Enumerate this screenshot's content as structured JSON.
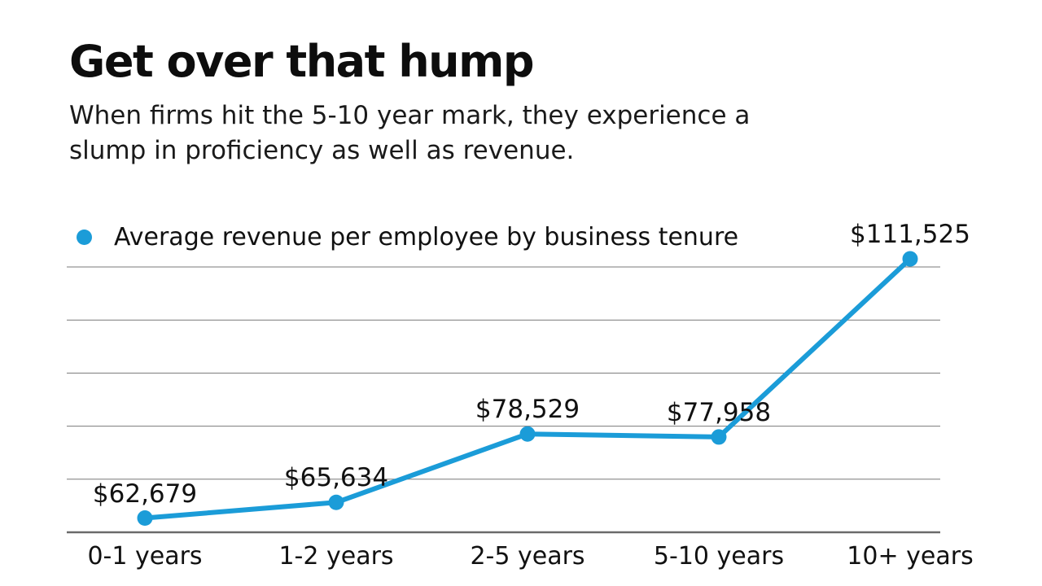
{
  "header": {
    "title": "Get over that hump",
    "subtitle": "When firms hit the 5-10 year mark, they experience a\nslump in proficiency as well as revenue."
  },
  "legend": {
    "marker": "blue-dot",
    "label": "Average revenue per employee by business tenure"
  },
  "colors": {
    "accent": "#1b9cd8",
    "gridline": "#787878",
    "axis": "#6a6a6a",
    "text": "#111111",
    "background": "#ffffff"
  },
  "chart_data": {
    "type": "line",
    "title": "Get over that hump",
    "categories": [
      "0-1 years",
      "1-2 years",
      "2-5 years",
      "5-10 years",
      "10+ years"
    ],
    "series": [
      {
        "name": "Average revenue per employee by business tenure",
        "values": [
          62679,
          65634,
          78529,
          77958,
          111525
        ]
      }
    ],
    "point_labels": [
      "$62,679",
      "$65,634",
      "$78,529",
      "$77,958",
      "$111,525"
    ],
    "xlabel": "",
    "ylabel": "",
    "ylim": [
      60000,
      110000
    ],
    "grid_step": 10000,
    "grid": "horizontal",
    "y_tick_labels_shown": false,
    "legend_position": "top-left",
    "marker": "circle",
    "line_color": "#1b9cd8"
  }
}
